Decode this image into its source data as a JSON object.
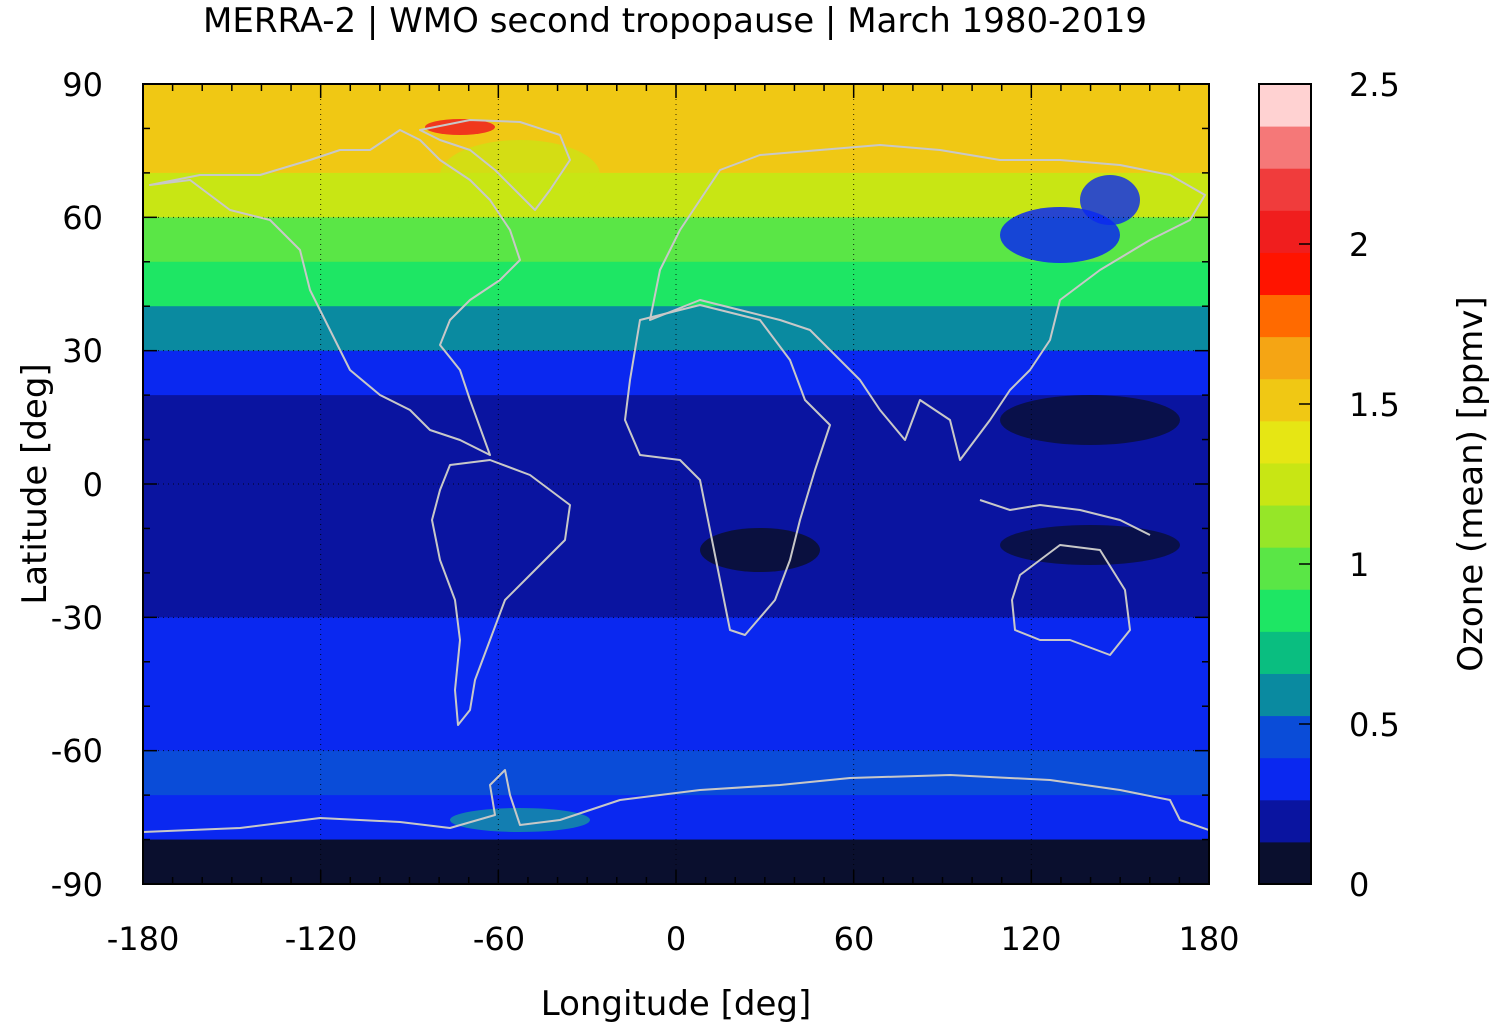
{
  "title": "MERRA-2 | WMO second tropopause | March 1980-2019",
  "map": {
    "xlabel": "Longitude [deg]",
    "ylabel": "Latitude [deg]",
    "xlim": [
      -180,
      180
    ],
    "ylim": [
      -90,
      90
    ],
    "x_ticks": [
      "-180",
      "-120",
      "-60",
      "0",
      "60",
      "120",
      "180"
    ],
    "y_ticks": [
      "90",
      "60",
      "30",
      "0",
      "-30",
      "-60",
      "-90"
    ],
    "grid": "dotted",
    "coastline_color": "#c8c8c8"
  },
  "colorbar": {
    "label": "Ozone (mean) [ppmv]",
    "range": [
      0,
      2.5
    ],
    "tick_labels": [
      "2.5",
      "2",
      "1.5",
      "1",
      "0.5",
      "0"
    ],
    "colors": [
      "#0a0f2e",
      "#0a14a0",
      "#0a28f0",
      "#0a4cd8",
      "#0a8aa0",
      "#0abe80",
      "#1ee664",
      "#5ae646",
      "#96e628",
      "#c8e614",
      "#e6e614",
      "#f0c814",
      "#f5a514",
      "#ff6a00",
      "#ff1400",
      "#f01e1e",
      "#f03c3c",
      "#f57878",
      "#ffd2d2"
    ]
  },
  "chart_data": {
    "type": "heatmap",
    "variable": "Ozone (mean) [ppmv]",
    "xlabel": "Longitude [deg]",
    "ylabel": "Latitude [deg]",
    "xlim": [
      -180,
      180
    ],
    "ylim": [
      -90,
      90
    ],
    "latitude_band_means_ppmv": [
      {
        "lat": 85,
        "value": 1.5
      },
      {
        "lat": 75,
        "value": 1.45
      },
      {
        "lat": 65,
        "value": 1.2
      },
      {
        "lat": 55,
        "value": 1.0
      },
      {
        "lat": 45,
        "value": 0.8
      },
      {
        "lat": 35,
        "value": 0.55
      },
      {
        "lat": 25,
        "value": 0.35
      },
      {
        "lat": 15,
        "value": 0.25
      },
      {
        "lat": 5,
        "value": 0.2
      },
      {
        "lat": -5,
        "value": 0.2
      },
      {
        "lat": -15,
        "value": 0.2
      },
      {
        "lat": -25,
        "value": 0.25
      },
      {
        "lat": -35,
        "value": 0.3
      },
      {
        "lat": -45,
        "value": 0.3
      },
      {
        "lat": -55,
        "value": 0.35
      },
      {
        "lat": -65,
        "value": 0.4
      },
      {
        "lat": -75,
        "value": 0.3
      },
      {
        "lat": -85,
        "value": 0.05
      }
    ],
    "colorbar_range": [
      0,
      2.5
    ]
  }
}
